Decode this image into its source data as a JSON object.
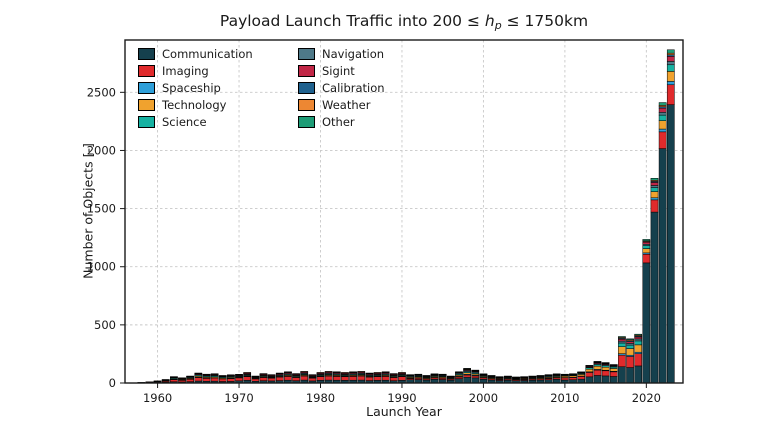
{
  "title": {
    "pre": "Payload Launch Traffic into 200 ≤ ",
    "var": "h",
    "sub": "p",
    "post": " ≤ 1750km"
  },
  "chart_data": {
    "type": "bar",
    "stacked": true,
    "title": "Payload Launch Traffic into 200 ≤ hₚ ≤ 1750km",
    "xlabel": "Launch Year",
    "ylabel": "Number of Objects [-]",
    "xlim": [
      1956,
      2024.5
    ],
    "ylim": [
      0,
      2950
    ],
    "yticks": [
      0,
      500,
      1000,
      1500,
      2000,
      2500
    ],
    "xticks": [
      1960,
      1970,
      1980,
      1990,
      2000,
      2010,
      2020
    ],
    "grid": "dashed, both axes",
    "legend_position": "upper left, two columns",
    "years": [
      1957,
      1958,
      1959,
      1960,
      1961,
      1962,
      1963,
      1964,
      1965,
      1966,
      1967,
      1968,
      1969,
      1970,
      1971,
      1972,
      1973,
      1974,
      1975,
      1976,
      1977,
      1978,
      1979,
      1980,
      1981,
      1982,
      1983,
      1984,
      1985,
      1986,
      1987,
      1988,
      1989,
      1990,
      1991,
      1992,
      1993,
      1994,
      1995,
      1996,
      1997,
      1998,
      1999,
      2000,
      2001,
      2002,
      2003,
      2004,
      2005,
      2006,
      2007,
      2008,
      2009,
      2010,
      2011,
      2012,
      2013,
      2014,
      2015,
      2016,
      2017,
      2018,
      2019,
      2020,
      2021,
      2022,
      2023
    ],
    "series": [
      {
        "name": "Communication",
        "color": "#15404d",
        "values": [
          0,
          1,
          2,
          4,
          6,
          11,
          9,
          12,
          17,
          15,
          16,
          13,
          14,
          19,
          23,
          15,
          20,
          18,
          21,
          24,
          20,
          25,
          18,
          23,
          25,
          24,
          23,
          24,
          25,
          21,
          23,
          24,
          20,
          23,
          28,
          30,
          26,
          32,
          30,
          24,
          38,
          50,
          44,
          32,
          26,
          22,
          24,
          20,
          22,
          24,
          26,
          28,
          32,
          26,
          28,
          33,
          53,
          65,
          61,
          56,
          140,
          133,
          147,
          1033,
          1470,
          2016,
          2394
        ]
      },
      {
        "name": "Imaging",
        "color": "#e02a2c",
        "values": [
          1,
          2,
          3,
          6,
          10,
          19,
          16,
          21,
          30,
          26,
          28,
          23,
          25,
          26,
          32,
          21,
          28,
          25,
          30,
          33,
          28,
          35,
          25,
          32,
          35,
          33,
          32,
          33,
          35,
          30,
          32,
          33,
          28,
          32,
          11,
          11,
          10,
          12,
          11,
          9,
          14,
          19,
          17,
          12,
          10,
          8,
          9,
          8,
          8,
          9,
          10,
          11,
          12,
          19,
          20,
          24,
          38,
          46,
          44,
          40,
          100,
          95,
          105,
          74,
          105,
          144,
          171
        ]
      },
      {
        "name": "Spaceship",
        "color": "#2e9fd9",
        "values": [
          0,
          0,
          0,
          1,
          1,
          2,
          1,
          2,
          3,
          2,
          2,
          2,
          2,
          2,
          3,
          2,
          2,
          2,
          3,
          3,
          2,
          3,
          2,
          3,
          3,
          3,
          3,
          3,
          3,
          3,
          3,
          3,
          2,
          3,
          4,
          4,
          3,
          4,
          4,
          3,
          5,
          6,
          6,
          4,
          3,
          3,
          3,
          3,
          3,
          3,
          3,
          4,
          4,
          2,
          2,
          3,
          5,
          6,
          5,
          5,
          12,
          11,
          13,
          12,
          18,
          24,
          29
        ]
      },
      {
        "name": "Technology",
        "color": "#f0a22e",
        "values": [
          0,
          1,
          1,
          2,
          3,
          6,
          5,
          6,
          9,
          8,
          8,
          7,
          7,
          5,
          6,
          4,
          6,
          5,
          6,
          7,
          6,
          7,
          5,
          6,
          7,
          7,
          6,
          7,
          7,
          6,
          6,
          7,
          6,
          6,
          7,
          8,
          7,
          8,
          8,
          6,
          10,
          13,
          11,
          8,
          7,
          6,
          6,
          5,
          6,
          6,
          7,
          7,
          8,
          11,
          12,
          14,
          23,
          28,
          26,
          24,
          60,
          57,
          63,
          37,
          53,
          72,
          86
        ]
      },
      {
        "name": "Science",
        "color": "#16b2a2",
        "values": [
          1,
          1,
          2,
          2,
          4,
          7,
          5,
          7,
          10,
          9,
          10,
          8,
          8,
          5,
          6,
          4,
          6,
          5,
          6,
          7,
          6,
          7,
          5,
          6,
          7,
          7,
          6,
          7,
          7,
          6,
          6,
          7,
          6,
          6,
          6,
          6,
          5,
          6,
          6,
          5,
          8,
          10,
          9,
          6,
          5,
          4,
          5,
          4,
          4,
          5,
          5,
          6,
          6,
          6,
          6,
          8,
          12,
          15,
          14,
          13,
          32,
          30,
          34,
          25,
          35,
          48,
          57
        ]
      },
      {
        "name": "Navigation",
        "color": "#4e7988",
        "values": [
          0,
          0,
          1,
          1,
          2,
          3,
          2,
          3,
          4,
          4,
          4,
          3,
          4,
          5,
          6,
          4,
          6,
          5,
          6,
          7,
          6,
          7,
          5,
          6,
          7,
          7,
          6,
          7,
          7,
          6,
          6,
          7,
          6,
          6,
          6,
          6,
          5,
          6,
          6,
          5,
          8,
          10,
          9,
          6,
          5,
          4,
          5,
          4,
          4,
          5,
          5,
          6,
          6,
          3,
          3,
          4,
          6,
          7,
          7,
          6,
          16,
          15,
          17,
          12,
          18,
          24,
          29
        ]
      },
      {
        "name": "Sigint",
        "color": "#c12646",
        "values": [
          0,
          0,
          1,
          1,
          2,
          4,
          4,
          5,
          7,
          6,
          6,
          5,
          6,
          8,
          9,
          6,
          8,
          7,
          9,
          10,
          8,
          10,
          7,
          9,
          10,
          10,
          9,
          10,
          10,
          9,
          9,
          10,
          8,
          9,
          4,
          4,
          3,
          4,
          4,
          3,
          5,
          6,
          6,
          4,
          3,
          3,
          3,
          3,
          3,
          3,
          3,
          4,
          4,
          3,
          3,
          4,
          6,
          7,
          7,
          6,
          16,
          15,
          17,
          18,
          26,
          36,
          43
        ]
      },
      {
        "name": "Calibration",
        "color": "#1f618e",
        "values": [
          0,
          0,
          0,
          0,
          1,
          1,
          1,
          1,
          2,
          2,
          2,
          1,
          1,
          1,
          1,
          1,
          1,
          1,
          1,
          1,
          1,
          1,
          1,
          1,
          1,
          1,
          1,
          1,
          1,
          1,
          1,
          1,
          1,
          1,
          1,
          2,
          1,
          2,
          2,
          1,
          2,
          3,
          2,
          2,
          1,
          1,
          1,
          1,
          1,
          1,
          1,
          1,
          2,
          2,
          2,
          2,
          3,
          4,
          4,
          3,
          8,
          8,
          8,
          6,
          9,
          12,
          14
        ]
      },
      {
        "name": "Weather",
        "color": "#ed8733",
        "values": [
          0,
          0,
          0,
          1,
          1,
          2,
          2,
          3,
          4,
          4,
          4,
          3,
          4,
          4,
          5,
          3,
          4,
          4,
          4,
          5,
          4,
          5,
          4,
          5,
          5,
          5,
          5,
          5,
          5,
          4,
          5,
          5,
          4,
          5,
          3,
          3,
          3,
          3,
          3,
          2,
          4,
          5,
          4,
          3,
          3,
          2,
          2,
          2,
          2,
          2,
          3,
          3,
          3,
          2,
          2,
          2,
          3,
          4,
          4,
          3,
          8,
          8,
          8,
          6,
          9,
          12,
          14
        ]
      },
      {
        "name": "Other",
        "color": "#1d9c76",
        "values": [
          0,
          0,
          0,
          0,
          0,
          0,
          0,
          0,
          0,
          0,
          0,
          0,
          0,
          0,
          0,
          0,
          0,
          0,
          0,
          0,
          0,
          0,
          0,
          0,
          0,
          0,
          0,
          0,
          0,
          0,
          0,
          0,
          0,
          0,
          2,
          2,
          2,
          2,
          2,
          2,
          3,
          4,
          3,
          2,
          2,
          2,
          2,
          2,
          2,
          2,
          2,
          2,
          2,
          2,
          2,
          2,
          3,
          4,
          4,
          3,
          8,
          8,
          8,
          12,
          18,
          24,
          29
        ]
      }
    ]
  },
  "axes": {
    "xlabel": "Launch Year",
    "ylabel": "Number of Objects [-]"
  }
}
